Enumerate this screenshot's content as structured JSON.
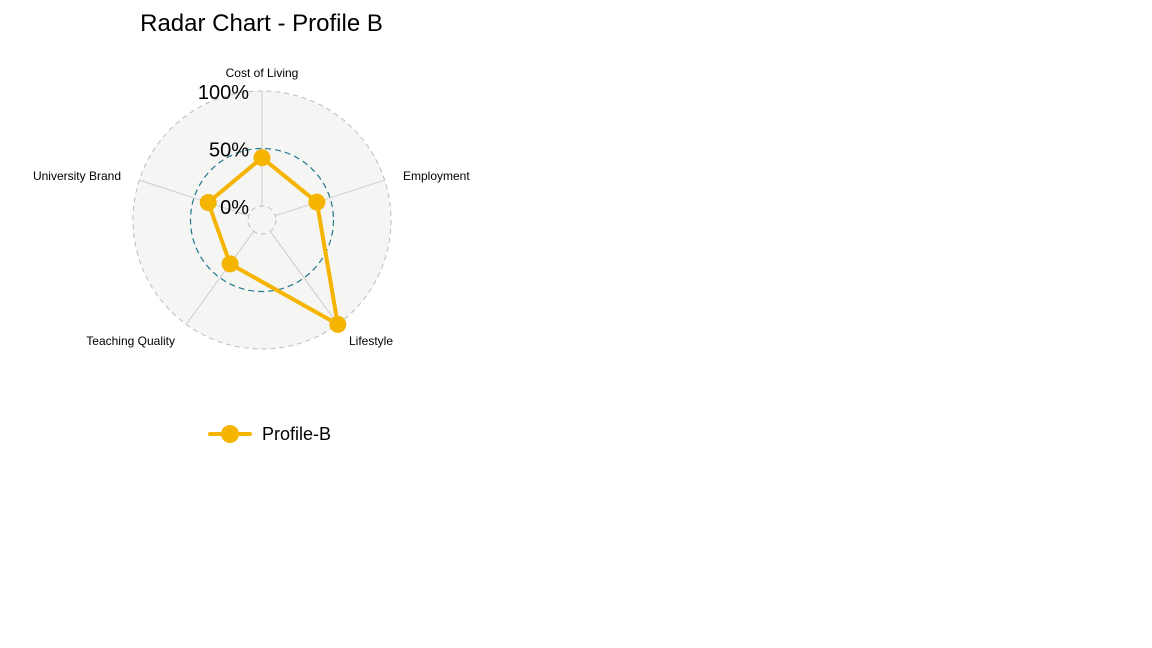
{
  "chart_data": {
    "type": "radar",
    "title": "Radar Chart - Profile B",
    "axes": [
      "Cost of Living",
      "Employment",
      "Lifestyle",
      "Teaching Quality",
      "University Brand"
    ],
    "grid_labels": [
      "0%",
      "50%",
      "100%"
    ],
    "range": [
      0,
      1
    ],
    "series": [
      {
        "name": "Profile-B",
        "values": [
          0.42,
          0.38,
          1.0,
          0.35,
          0.37
        ],
        "color": "#f4b400"
      }
    ],
    "legend_position": "bottom",
    "grid_color": "#cccccc",
    "mid_ring_color": "#1f7a8c",
    "background_fill": "#f5f5f3"
  }
}
